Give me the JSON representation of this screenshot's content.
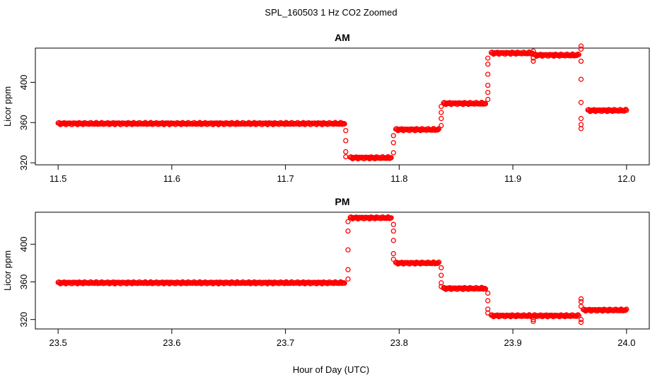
{
  "figure": {
    "title": "SPL_160503  1 Hz CO2 Zoomed",
    "xlabel": "Hour of Day (UTC)"
  },
  "chart_data": [
    {
      "type": "scatter",
      "title": "AM",
      "xlabel": "",
      "ylabel": "Licor ppm",
      "xlim": [
        11.48,
        12.02
      ],
      "ylim": [
        318,
        434
      ],
      "xticks": [
        "11.5",
        "11.6",
        "11.7",
        "11.8",
        "11.9",
        "12.0"
      ],
      "yticks": [
        "320",
        "360",
        "400"
      ],
      "marker_color": "#ff0000",
      "marker": "open-circle",
      "segments": [
        {
          "x_start": 11.5,
          "x_end": 11.752,
          "y": 359
        },
        {
          "x_start": 11.757,
          "x_end": 11.793,
          "y": 325
        },
        {
          "x_start": 11.797,
          "x_end": 11.835,
          "y": 353
        },
        {
          "x_start": 11.839,
          "x_end": 11.876,
          "y": 379
        },
        {
          "x_start": 11.881,
          "x_end": 11.917,
          "y": 429
        },
        {
          "x_start": 11.919,
          "x_end": 11.958,
          "y": 427
        },
        {
          "x_start": 11.966,
          "x_end": 12.0,
          "y": 372
        }
      ],
      "transitions": [
        {
          "x": 11.753,
          "y": [
            352,
            342,
            331,
            326
          ]
        },
        {
          "x": 11.795,
          "y": [
            330,
            340,
            347
          ]
        },
        {
          "x": 11.837,
          "y": [
            357,
            364,
            370,
            376
          ]
        },
        {
          "x": 11.878,
          "y": [
            383,
            390,
            397,
            408,
            418,
            424
          ]
        },
        {
          "x": 11.918,
          "y": [
            421,
            424,
            431
          ]
        },
        {
          "x": 11.96,
          "y": [
            436,
            433,
            421,
            403,
            380,
            364,
            358,
            354
          ]
        }
      ]
    },
    {
      "type": "scatter",
      "title": "PM",
      "xlabel": "",
      "ylabel": "Licor ppm",
      "xlim": [
        23.48,
        24.02
      ],
      "ylim": [
        310,
        434
      ],
      "xticks": [
        "23.5",
        "23.6",
        "23.7",
        "23.8",
        "23.9",
        "24.0"
      ],
      "yticks": [
        "320",
        "360",
        "400"
      ],
      "marker_color": "#ff0000",
      "marker": "open-circle",
      "segments": [
        {
          "x_start": 23.5,
          "x_end": 23.752,
          "y": 359
        },
        {
          "x_start": 23.757,
          "x_end": 23.793,
          "y": 428
        },
        {
          "x_start": 23.797,
          "x_end": 23.835,
          "y": 380
        },
        {
          "x_start": 23.839,
          "x_end": 23.876,
          "y": 353
        },
        {
          "x_start": 23.881,
          "x_end": 23.958,
          "y": 324
        },
        {
          "x_start": 23.962,
          "x_end": 24.0,
          "y": 330
        }
      ],
      "transitions": [
        {
          "x": 23.755,
          "y": [
            363,
            373,
            394,
            414,
            424
          ]
        },
        {
          "x": 23.795,
          "y": [
            421,
            414,
            404,
            390,
            384
          ]
        },
        {
          "x": 23.837,
          "y": [
            375,
            367,
            359,
            355
          ]
        },
        {
          "x": 23.878,
          "y": [
            348,
            340,
            331,
            327
          ]
        },
        {
          "x": 23.918,
          "y": [
            318,
            320
          ]
        },
        {
          "x": 23.96,
          "y": [
            317,
            320,
            342,
            339,
            334
          ]
        }
      ]
    }
  ]
}
